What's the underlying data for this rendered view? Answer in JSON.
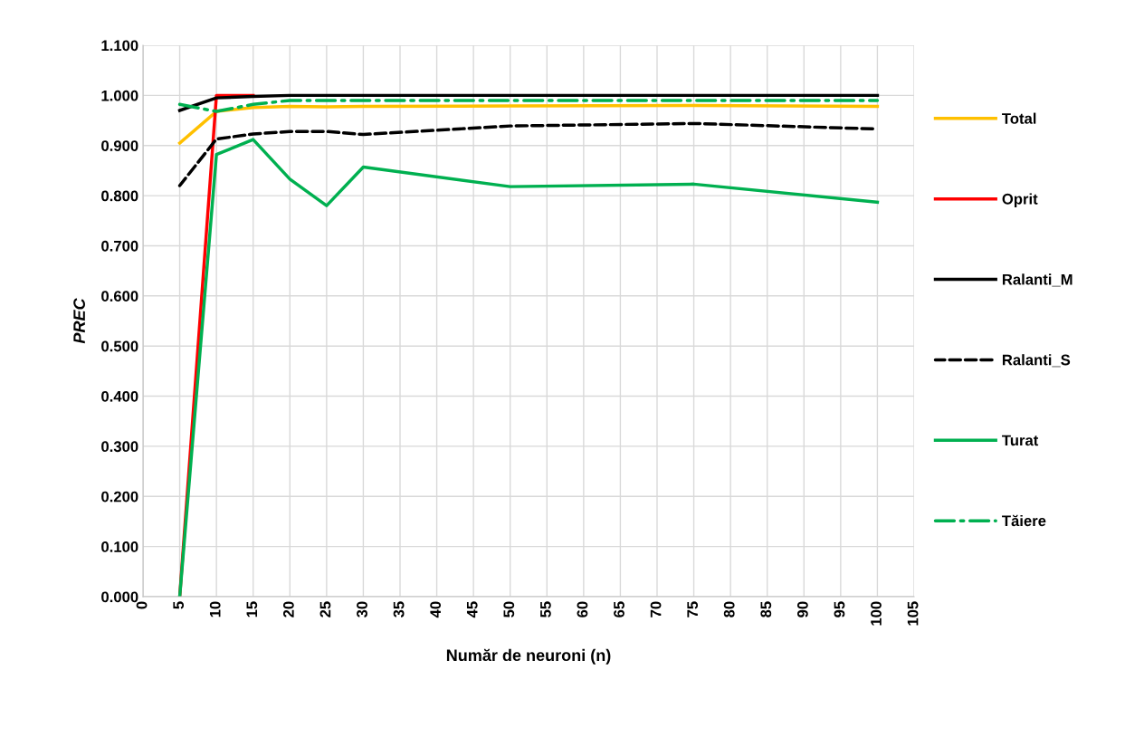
{
  "chart_data": {
    "type": "line",
    "xlabel": "Număr de neuroni (n)",
    "ylabel": "PREC",
    "x": [
      5,
      10,
      15,
      20,
      25,
      30,
      50,
      75,
      100
    ],
    "series": [
      {
        "name": "Total",
        "color": "#ffc000",
        "line_style": "solid",
        "values": [
          0.905,
          0.968,
          0.976,
          0.978,
          0.977,
          0.978,
          0.979,
          0.98,
          0.978
        ]
      },
      {
        "name": "Oprit",
        "color": "#ff0000",
        "line_style": "solid",
        "values": [
          0.0,
          1.0,
          1.0,
          null,
          null,
          null,
          null,
          null,
          null
        ]
      },
      {
        "name": "Ralanti_M",
        "color": "#000000",
        "line_style": "solid",
        "values": [
          0.97,
          0.995,
          0.998,
          1.0,
          1.0,
          1.0,
          1.0,
          1.0,
          1.0
        ]
      },
      {
        "name": "Ralanti_S",
        "color": "#000000",
        "line_style": "dashed",
        "values": [
          0.82,
          0.913,
          0.923,
          0.928,
          0.928,
          0.922,
          0.939,
          0.944,
          0.933
        ]
      },
      {
        "name": "Turat",
        "color": "#00b050",
        "line_style": "solid",
        "values": [
          0.0,
          0.882,
          0.912,
          0.833,
          0.78,
          0.857,
          0.818,
          0.823,
          0.787
        ]
      },
      {
        "name": "Tăiere",
        "color": "#00b050",
        "line_style": "dashdot",
        "values": [
          0.982,
          0.968,
          0.982,
          0.99,
          0.99,
          0.99,
          0.99,
          0.99,
          0.99
        ]
      }
    ],
    "xlim": [
      0,
      105
    ],
    "xticks": [
      0,
      5,
      10,
      15,
      20,
      25,
      30,
      35,
      40,
      45,
      50,
      55,
      60,
      65,
      70,
      75,
      80,
      85,
      90,
      95,
      100,
      105
    ],
    "ylim": [
      0,
      1.1
    ],
    "yticks": [
      {
        "value": 0,
        "label": "0.000"
      },
      {
        "value": 0.1,
        "label": "0.100"
      },
      {
        "value": 0.2,
        "label": "0.200"
      },
      {
        "value": 0.3,
        "label": "0.300"
      },
      {
        "value": 0.4,
        "label": "0.400"
      },
      {
        "value": 0.5,
        "label": "0.500"
      },
      {
        "value": 0.6,
        "label": "0.600"
      },
      {
        "value": 0.7,
        "label": "0.700"
      },
      {
        "value": 0.8,
        "label": "0.800"
      },
      {
        "value": 0.9,
        "label": "0.900"
      },
      {
        "value": 1.0,
        "label": "1.000"
      },
      {
        "value": 1.1,
        "label": "1.100"
      }
    ],
    "grid": true,
    "legend": "right",
    "marker": "none"
  }
}
